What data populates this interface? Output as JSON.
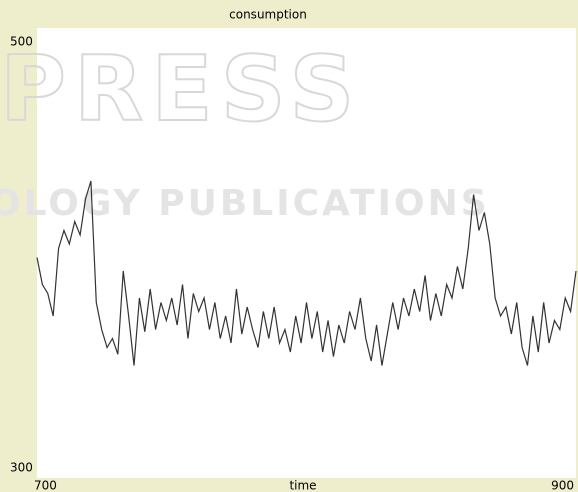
{
  "chart_data": {
    "type": "line",
    "title": "consumption",
    "xlabel": "time",
    "watermark": [
      "PRESS",
      "OLOGY PUBLICATIONS"
    ],
    "x": [
      700,
      702,
      704,
      706,
      708,
      710,
      712,
      714,
      716,
      718,
      720,
      722,
      724,
      726,
      728,
      730,
      732,
      734,
      736,
      738,
      740,
      742,
      744,
      746,
      748,
      750,
      752,
      754,
      756,
      758,
      760,
      762,
      764,
      766,
      768,
      770,
      772,
      774,
      776,
      778,
      780,
      782,
      784,
      786,
      788,
      790,
      792,
      794,
      796,
      798,
      800,
      802,
      804,
      806,
      808,
      810,
      812,
      814,
      816,
      818,
      820,
      822,
      824,
      826,
      828,
      830,
      832,
      834,
      836,
      838,
      840,
      842,
      844,
      846,
      848,
      850,
      852,
      854,
      856,
      858,
      860,
      862,
      864,
      866,
      868,
      870,
      872,
      874,
      876,
      878,
      880,
      882,
      884,
      886,
      888,
      890,
      892,
      894,
      896,
      898,
      900
    ],
    "series": [
      {
        "name": "consumption",
        "color": "#333333",
        "values": [
          398,
          386,
          382,
          372,
          402,
          410,
          404,
          414,
          408,
          424,
          432,
          378,
          366,
          358,
          362,
          355,
          392,
          372,
          350,
          380,
          365,
          384,
          366,
          378,
          370,
          380,
          368,
          386,
          362,
          382,
          374,
          380,
          366,
          378,
          362,
          372,
          360,
          384,
          364,
          376,
          366,
          358,
          374,
          362,
          376,
          360,
          366,
          356,
          372,
          360,
          378,
          362,
          374,
          356,
          370,
          354,
          368,
          360,
          374,
          366,
          380,
          362,
          352,
          368,
          350,
          364,
          378,
          366,
          380,
          372,
          384,
          374,
          390,
          370,
          382,
          372,
          386,
          380,
          394,
          384,
          402,
          426,
          410,
          418,
          404,
          380,
          372,
          376,
          364,
          378,
          358,
          350,
          372,
          356,
          378,
          360,
          370,
          366,
          380,
          374,
          392
        ]
      }
    ],
    "xlim": [
      700,
      900
    ],
    "ylim": [
      300,
      500
    ],
    "xticks": [
      700,
      900
    ],
    "yticks": [
      300,
      500
    ],
    "grid": false
  }
}
